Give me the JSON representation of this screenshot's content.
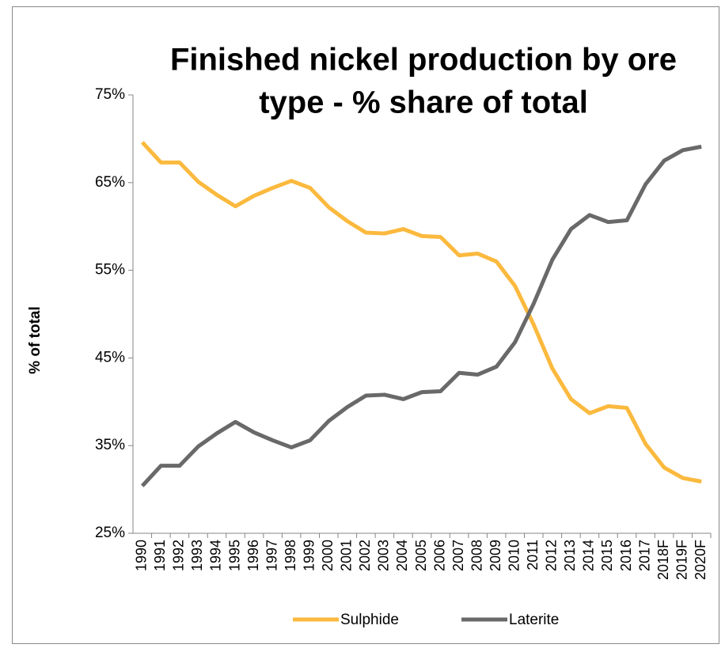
{
  "chart_data": {
    "type": "line",
    "title": "Finished nickel production by ore type - % share of total",
    "y_label": "% of total",
    "categories": [
      "1990",
      "1991",
      "1992",
      "1993",
      "1994",
      "1995",
      "1996",
      "1997",
      "1998",
      "1999",
      "2000",
      "2001",
      "2002",
      "2003",
      "2004",
      "2005",
      "2006",
      "2007",
      "2008",
      "2009",
      "2010",
      "2011",
      "2012",
      "2013",
      "2014",
      "2015",
      "2016",
      "2017",
      "2018F",
      "2019F",
      "2020F"
    ],
    "series": [
      {
        "name": "Sulphide",
        "color": "#fbb93e",
        "values": [
          69.6,
          67.3,
          67.3,
          65.1,
          63.6,
          62.3,
          63.5,
          64.4,
          65.2,
          64.4,
          62.2,
          60.6,
          59.3,
          59.2,
          59.7,
          58.9,
          58.8,
          56.7,
          56.9,
          56.0,
          53.2,
          48.8,
          43.8,
          40.3,
          38.7,
          39.5,
          39.3,
          35.2,
          32.5,
          31.3,
          30.9
        ]
      },
      {
        "name": "Laterite",
        "color": "#696969",
        "values": [
          30.4,
          32.7,
          32.7,
          34.9,
          36.4,
          37.7,
          36.5,
          35.6,
          34.8,
          35.6,
          37.8,
          39.4,
          40.7,
          40.8,
          40.3,
          41.1,
          41.2,
          43.3,
          43.1,
          44.0,
          46.8,
          51.2,
          56.2,
          59.7,
          61.3,
          60.5,
          60.7,
          64.8,
          67.5,
          68.7,
          69.1
        ]
      }
    ],
    "ylim": [
      25,
      75
    ],
    "yticks": [
      {
        "value": 25,
        "label": "25%"
      },
      {
        "value": 35,
        "label": "35%"
      },
      {
        "value": 45,
        "label": "45%"
      },
      {
        "value": 55,
        "label": "55%"
      },
      {
        "value": 65,
        "label": "65%"
      },
      {
        "value": 75,
        "label": "75%"
      }
    ],
    "legend": "bottom"
  }
}
